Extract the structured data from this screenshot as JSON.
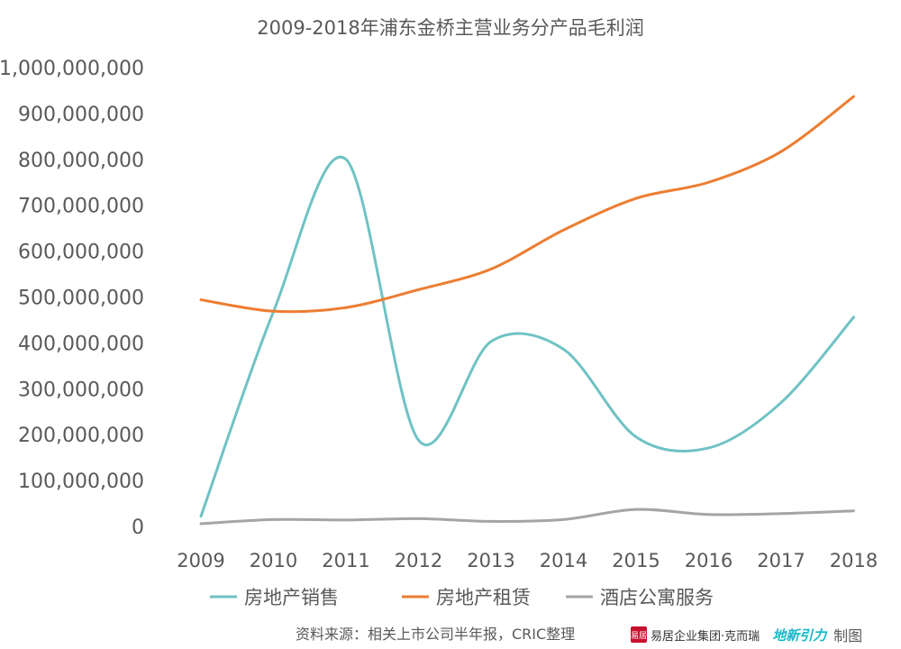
{
  "chart_data": {
    "type": "line",
    "title": "2009-2018年浦东金桥主营业务分产品毛利润",
    "categories": [
      "2009",
      "2010",
      "2011",
      "2012",
      "2013",
      "2014",
      "2015",
      "2016",
      "2017",
      "2018"
    ],
    "ylim": [
      0,
      1000000000
    ],
    "yticks": [
      "0",
      "100,000,000",
      "200,000,000",
      "300,000,000",
      "400,000,000",
      "500,000,000",
      "600,000,000",
      "700,000,000",
      "800,000,000",
      "900,000,000",
      "1,000,000,000"
    ],
    "grid": false,
    "legend_position": "bottom",
    "series": [
      {
        "name": "房地产销售",
        "color": "#6fc2c4",
        "values": [
          22000000,
          468000000,
          800000000,
          188000000,
          403000000,
          386000000,
          195000000,
          171000000,
          270000000,
          456000000
        ]
      },
      {
        "name": "房地产租赁",
        "color": "#ed7d31",
        "values": [
          494000000,
          469000000,
          477000000,
          516000000,
          561000000,
          646000000,
          715000000,
          750000000,
          817000000,
          937000000
        ]
      },
      {
        "name": "酒店公寓服务",
        "color": "#a5a5a5",
        "values": [
          6000000,
          15000000,
          14000000,
          17000000,
          11000000,
          15000000,
          37000000,
          26000000,
          28000000,
          34000000
        ]
      }
    ]
  },
  "footer": {
    "source": "资料来源：相关上市公司半年报，CRIC整理",
    "logo_seal": "易居",
    "logo_brand": "易居企业集团·克而瑞",
    "logo_brand2": "地新引力",
    "credit": "制图"
  }
}
